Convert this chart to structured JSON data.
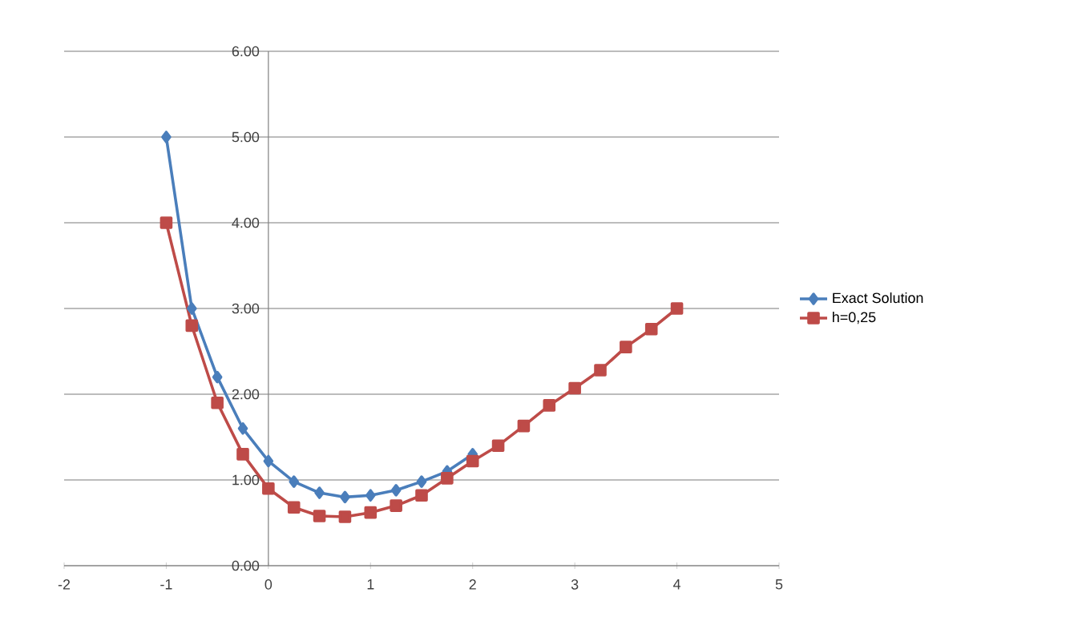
{
  "chart_data": {
    "type": "line",
    "xlim": [
      -2,
      5
    ],
    "xticks": [
      -2,
      -1,
      0,
      1,
      2,
      3,
      4,
      5
    ],
    "ylim": [
      0,
      6
    ],
    "yticks": [
      {
        "value": 0,
        "label": "0.00"
      },
      {
        "value": 1,
        "label": "1.00"
      },
      {
        "value": 2,
        "label": "2.00"
      },
      {
        "value": 3,
        "label": "3.00"
      },
      {
        "value": 4,
        "label": "4.00"
      },
      {
        "value": 5,
        "label": "5.00"
      },
      {
        "value": 6,
        "label": "6.00"
      }
    ],
    "grid": "y",
    "legend": "right",
    "series": [
      {
        "name": "Exact Solution",
        "color": "#4a7ebb",
        "marker": "diamond",
        "x": [
          -1,
          -0.75,
          -0.5,
          -0.25,
          0,
          0.25,
          0.5,
          0.75,
          1,
          1.25,
          1.5,
          1.75,
          2
        ],
        "values": [
          5.0,
          3.0,
          2.2,
          1.6,
          1.22,
          0.98,
          0.85,
          0.8,
          0.82,
          0.88,
          0.98,
          1.1,
          1.3
        ]
      },
      {
        "name": "h=0,25",
        "color": "#be4b48",
        "marker": "square",
        "x": [
          -1,
          -0.75,
          -0.5,
          -0.25,
          0,
          0.25,
          0.5,
          0.75,
          1,
          1.25,
          1.5,
          1.75,
          2,
          2.25,
          2.5,
          2.75,
          3,
          3.25,
          3.5,
          3.75,
          4
        ],
        "values": [
          4.0,
          2.8,
          1.9,
          1.3,
          0.9,
          0.68,
          0.58,
          0.57,
          0.62,
          0.7,
          0.82,
          1.02,
          1.22,
          1.4,
          1.63,
          1.87,
          2.07,
          2.28,
          2.55,
          2.76,
          3.0
        ]
      }
    ]
  }
}
